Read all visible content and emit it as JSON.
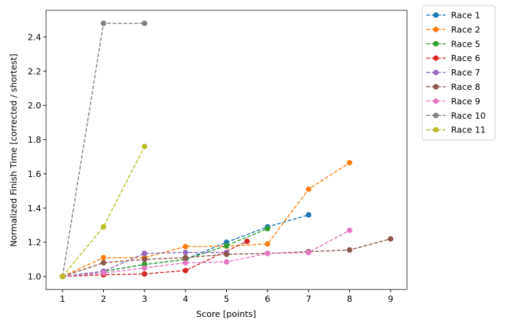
{
  "chart_data": {
    "type": "line",
    "xlabel": "Score [points]",
    "ylabel": "Normalized Finish Time [corrected / shortest]",
    "xlim": [
      0.6,
      9.4
    ],
    "ylim": [
      0.924,
      2.556
    ],
    "xticks": [
      1,
      2,
      3,
      4,
      5,
      6,
      7,
      8,
      9
    ],
    "yticks": [
      {
        "value": 1.0,
        "label": "1.0"
      },
      {
        "value": 1.2,
        "label": "1.2"
      },
      {
        "value": 1.4,
        "label": "1.4"
      },
      {
        "value": 1.6,
        "label": "1.6"
      },
      {
        "value": 1.8,
        "label": "1.8"
      },
      {
        "value": 2.0,
        "label": "2.0"
      },
      {
        "value": 2.2,
        "label": "2.2"
      },
      {
        "value": 2.4,
        "label": "2.4"
      }
    ],
    "legend": "outside-upper-right",
    "line_style": "dashed",
    "series": [
      {
        "name": "Race 1",
        "color": "#1f77b4",
        "x": [
          1,
          2,
          3,
          4,
          5,
          6,
          7
        ],
        "values": [
          1.0,
          1.03,
          1.07,
          1.1,
          1.2,
          1.29,
          1.36
        ]
      },
      {
        "name": "Race 2",
        "color": "#ff7f0e",
        "x": [
          1,
          2,
          3,
          4,
          5,
          6,
          7,
          8
        ],
        "values": [
          1.0,
          1.11,
          1.11,
          1.175,
          1.177,
          1.19,
          1.51,
          1.665
        ]
      },
      {
        "name": "Race 5",
        "color": "#2ca02c",
        "x": [
          1,
          2,
          3,
          4,
          5,
          6
        ],
        "values": [
          1.0,
          1.03,
          1.07,
          1.1,
          1.18,
          1.28
        ]
      },
      {
        "name": "Race 6",
        "color": "#d62728",
        "x": [
          1,
          2,
          3,
          4,
          5.5
        ],
        "values": [
          1.0,
          1.01,
          1.015,
          1.035,
          1.205
        ]
      },
      {
        "name": "Race 7",
        "color": "#9467bd",
        "x": [
          1,
          2,
          3,
          4,
          5
        ],
        "values": [
          1.0,
          1.03,
          1.135,
          1.14,
          1.14
        ]
      },
      {
        "name": "Race 8",
        "color": "#8c564b",
        "x": [
          1,
          2,
          3,
          4,
          5,
          6,
          7,
          8,
          9
        ],
        "values": [
          1.0,
          1.08,
          1.1,
          1.11,
          1.13,
          1.135,
          1.145,
          1.155,
          1.22
        ]
      },
      {
        "name": "Race 9",
        "color": "#e377c2",
        "x": [
          1,
          2,
          3,
          4,
          5,
          6,
          7,
          8
        ],
        "values": [
          1.0,
          1.02,
          1.05,
          1.08,
          1.085,
          1.135,
          1.14,
          1.27
        ]
      },
      {
        "name": "Race 10",
        "color": "#7f7f7f",
        "x": [
          1,
          2,
          3
        ],
        "values": [
          1.0,
          2.48,
          2.48
        ]
      },
      {
        "name": "Race 11",
        "color": "#bcbd22",
        "x": [
          1,
          2,
          3
        ],
        "values": [
          1.0,
          1.29,
          1.76
        ]
      }
    ]
  }
}
